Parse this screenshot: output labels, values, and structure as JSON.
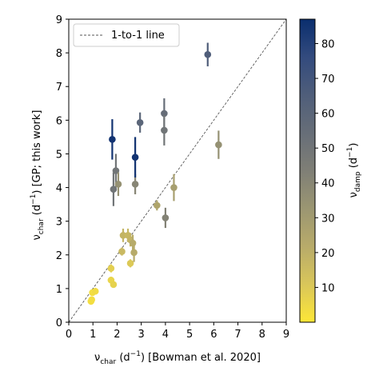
{
  "chart_data": {
    "type": "scatter",
    "xlabel_main": "ν",
    "xlabel_sub": "char",
    "xlabel_unit_pre": " (d",
    "xlabel_unit_sup": "−1",
    "xlabel_unit_post": ") [Bowman et al. 2020]",
    "ylabel_main": "ν",
    "ylabel_sub": "char",
    "ylabel_unit_pre": " (d",
    "ylabel_unit_sup": "−1",
    "ylabel_unit_post": ") [GP; this work]",
    "xlim": [
      0,
      9
    ],
    "ylim": [
      0,
      9
    ],
    "xticks": [
      "0",
      "1",
      "2",
      "3",
      "4",
      "5",
      "6",
      "7",
      "8",
      "9"
    ],
    "yticks": [
      "0",
      "1",
      "2",
      "3",
      "4",
      "5",
      "6",
      "7",
      "8",
      "9"
    ],
    "grid": false,
    "legend": {
      "label": "1-to-1 line",
      "placement": "top-left"
    },
    "reference_line": {
      "x": [
        0,
        9
      ],
      "y": [
        0,
        9
      ]
    },
    "colorbar": {
      "label_main": "ν",
      "label_sub": "damp",
      "label_unit_pre": " (d",
      "label_unit_sup": "−1",
      "label_unit_post": ")",
      "range": [
        0,
        87
      ],
      "ticks": [
        "10",
        "20",
        "30",
        "40",
        "50",
        "60",
        "70",
        "80"
      ],
      "colors": [
        "#fde737",
        "#d9c65a",
        "#b8ab6a",
        "#9b9672",
        "#7f7f76",
        "#676e78",
        "#4f5e7a",
        "#334b7e",
        "#0a2e6e"
      ]
    },
    "points": [
      {
        "x": 0.92,
        "y": 0.62,
        "yerr": 0.07,
        "color_value": 3
      },
      {
        "x": 0.95,
        "y": 0.67,
        "yerr": 0.07,
        "color_value": 3
      },
      {
        "x": 0.98,
        "y": 0.88,
        "yerr": 0.07,
        "color_value": 3
      },
      {
        "x": 1.1,
        "y": 0.92,
        "yerr": 0.1,
        "color_value": 4
      },
      {
        "x": 1.75,
        "y": 1.6,
        "yerr": 0.12,
        "color_value": 8
      },
      {
        "x": 1.75,
        "y": 1.25,
        "yerr": 0.1,
        "color_value": 6
      },
      {
        "x": 1.85,
        "y": 1.12,
        "yerr": 0.1,
        "color_value": 7
      },
      {
        "x": 2.2,
        "y": 2.1,
        "yerr": 0.12,
        "color_value": 16
      },
      {
        "x": 2.25,
        "y": 2.58,
        "yerr": 0.2,
        "color_value": 18
      },
      {
        "x": 2.45,
        "y": 2.58,
        "yerr": 0.2,
        "color_value": 17
      },
      {
        "x": 2.55,
        "y": 2.45,
        "yerr": 0.2,
        "color_value": 18
      },
      {
        "x": 2.55,
        "y": 1.75,
        "yerr": 0.12,
        "color_value": 10
      },
      {
        "x": 2.65,
        "y": 2.35,
        "yerr": 0.25,
        "color_value": 22
      },
      {
        "x": 2.7,
        "y": 2.07,
        "yerr": 0.28,
        "color_value": 22
      },
      {
        "x": 3.65,
        "y": 3.47,
        "yerr": 0.15,
        "color_value": 25
      },
      {
        "x": 4.0,
        "y": 3.1,
        "yerr": 0.3,
        "color_value": 42
      },
      {
        "x": 4.35,
        "y": 4.0,
        "yerr": 0.4,
        "color_value": 28
      },
      {
        "x": 1.8,
        "y": 5.43,
        "yerr": 0.6,
        "color_value": 85
      },
      {
        "x": 1.85,
        "y": 3.95,
        "yerr": 0.5,
        "color_value": 50
      },
      {
        "x": 1.95,
        "y": 4.5,
        "yerr": 0.5,
        "color_value": 50
      },
      {
        "x": 2.05,
        "y": 4.1,
        "yerr": 0.35,
        "color_value": 35
      },
      {
        "x": 2.75,
        "y": 4.1,
        "yerr": 0.3,
        "color_value": 40
      },
      {
        "x": 2.75,
        "y": 4.9,
        "yerr": 0.6,
        "color_value": 85
      },
      {
        "x": 2.95,
        "y": 5.93,
        "yerr": 0.3,
        "color_value": 60
      },
      {
        "x": 3.95,
        "y": 6.2,
        "yerr": 0.45,
        "color_value": 55
      },
      {
        "x": 3.95,
        "y": 5.7,
        "yerr": 0.45,
        "color_value": 50
      },
      {
        "x": 5.75,
        "y": 7.95,
        "yerr": 0.35,
        "color_value": 65
      },
      {
        "x": 6.2,
        "y": 5.27,
        "yerr": 0.42,
        "color_value": 35
      }
    ]
  }
}
